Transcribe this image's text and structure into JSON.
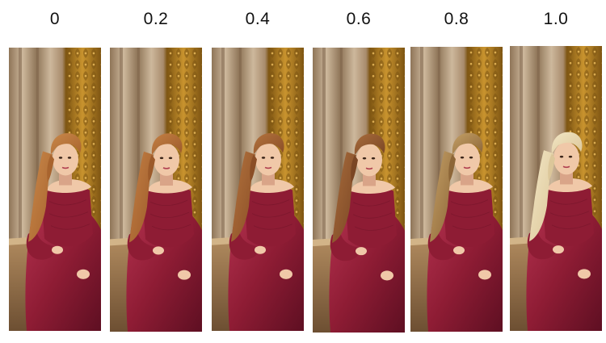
{
  "panels": [
    {
      "label": "0",
      "hair_color": "#a8642e",
      "hair_light": "#c9884a"
    },
    {
      "label": "0.2",
      "hair_color": "#9c5a2a",
      "hair_light": "#c48044"
    },
    {
      "label": "0.4",
      "hair_color": "#8a4e26",
      "hair_light": "#b3733e"
    },
    {
      "label": "0.6",
      "hair_color": "#7a4624",
      "hair_light": "#a86c3c"
    },
    {
      "label": "0.8",
      "hair_color": "#8d6638",
      "hair_light": "#c4a066"
    },
    {
      "label": "1.0",
      "hair_color": "#dcc79a",
      "hair_light": "#f2e6c4"
    }
  ],
  "colors": {
    "dress": "#8e1c34",
    "dress_dark": "#5e0f22",
    "dress_light": "#b43250",
    "skin": "#f0c8a8",
    "skin_shadow": "#d9a488",
    "pillar": "#cdb89c",
    "pillar_dark": "#8f7558",
    "gold": "#c8932e",
    "gold_dark": "#7e5512",
    "stone": "#b08a5e",
    "stone_dark": "#6d4f32"
  }
}
